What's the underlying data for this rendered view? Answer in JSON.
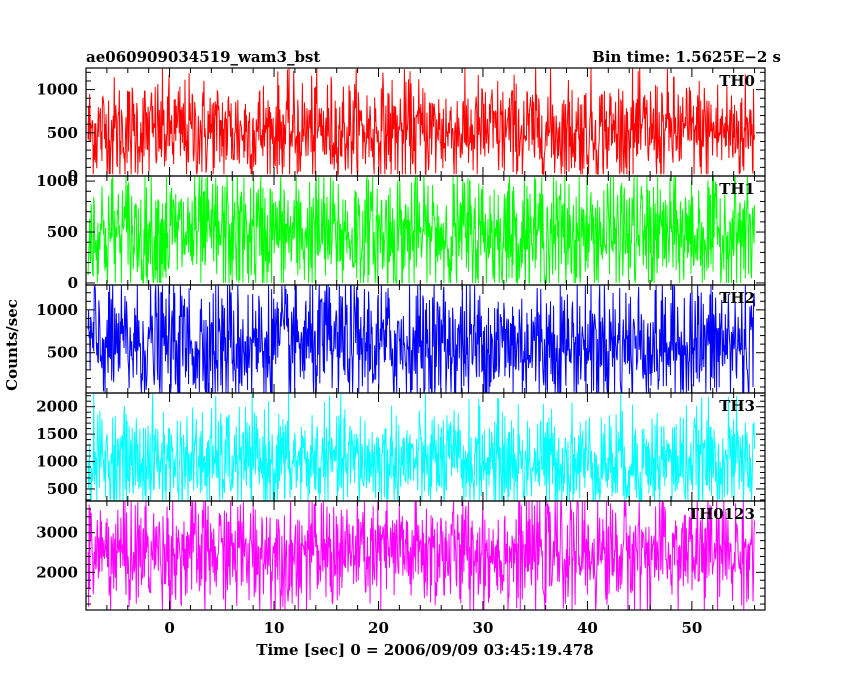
{
  "header": {
    "left_title": "ae060909034519_wam3_bst",
    "right_title": "Bin time: 1.5625E−2 s"
  },
  "axes": {
    "xlabel": "Time [sec] 0 = 2006/09/09 03:45:19.478",
    "ylabel": "Counts/sec"
  },
  "chart_data": {
    "type": "line",
    "title": "ae060909034519_wam3_bst",
    "subtitle": "Bin time: 1.5625E−2 s",
    "xlabel": "Time [sec] 0 = 2006/09/09 03:45:19.478",
    "ylabel": "Counts/sec",
    "xlim": [
      -8,
      57
    ],
    "x_ticks": [
      0,
      10,
      20,
      30,
      40,
      50
    ],
    "x_range_data": [
      -7.8,
      56.0
    ],
    "bin_time_s": 0.015625,
    "grid": false,
    "panels": [
      {
        "name": "TH0",
        "color": "#ff0000",
        "ylim": [
          0,
          1250
        ],
        "y_ticks": [
          0,
          500,
          1000
        ],
        "series_summary": {
          "min": 20,
          "typical_low": 150,
          "mean": 520,
          "typical_high": 950,
          "max": 1250
        }
      },
      {
        "name": "TH1",
        "color": "#00ff00",
        "ylim": [
          -20,
          1050
        ],
        "y_ticks": [
          0,
          500,
          1000
        ],
        "series_summary": {
          "min": 0,
          "typical_low": 80,
          "mean": 480,
          "typical_high": 900,
          "max": 1050
        }
      },
      {
        "name": "TH2",
        "color": "#0000ff",
        "ylim": [
          30,
          1290
        ],
        "y_ticks": [
          500,
          1000
        ],
        "series_summary": {
          "min": 30,
          "typical_low": 150,
          "mean": 600,
          "typical_high": 1150,
          "max": 1290
        }
      },
      {
        "name": "TH3",
        "color": "#00ffff",
        "ylim": [
          280,
          2250
        ],
        "y_ticks": [
          500,
          1000,
          1500,
          2000
        ],
        "series_summary": {
          "min": 280,
          "typical_low": 450,
          "mean": 1000,
          "typical_high": 1700,
          "max": 2250
        }
      },
      {
        "name": "TH0123",
        "color": "#ff00ff",
        "ylim": [
          1050,
          3800
        ],
        "y_ticks": [
          2000,
          3000
        ],
        "series_summary": {
          "min": 1050,
          "typical_low": 1500,
          "mean": 2500,
          "typical_high": 3400,
          "max": 3800
        }
      }
    ]
  }
}
